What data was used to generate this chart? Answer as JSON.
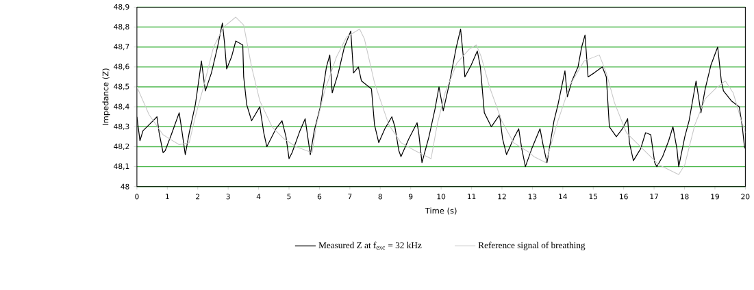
{
  "chart_data": {
    "type": "line",
    "xlabel": "Time (s)",
    "ylabel": "Impedance (Z)",
    "xlim": [
      0,
      20
    ],
    "ylim": [
      48,
      48.9
    ],
    "xticks": [
      0,
      1,
      2,
      3,
      4,
      5,
      6,
      7,
      8,
      9,
      10,
      11,
      12,
      13,
      14,
      15,
      16,
      17,
      18,
      19,
      20
    ],
    "yticks": [
      {
        "value": 48,
        "label": "48"
      },
      {
        "value": 48.1,
        "label": "48,1"
      },
      {
        "value": 48.2,
        "label": "48,2"
      },
      {
        "value": 48.3,
        "label": "48,3"
      },
      {
        "value": 48.4,
        "label": "48,4"
      },
      {
        "value": 48.5,
        "label": "48,5"
      },
      {
        "value": 48.6,
        "label": "48,6"
      },
      {
        "value": 48.7,
        "label": "48,7"
      },
      {
        "value": 48.8,
        "label": "48,8"
      },
      {
        "value": 48.9,
        "label": "48,9"
      }
    ],
    "grid": "y",
    "legend": "bottom",
    "series": [
      {
        "name": "Measured Z at f$_{exc}$ = 32  kHz",
        "color": "#000000",
        "x": [
          0,
          0.1,
          0.2,
          0.4,
          0.66,
          0.73,
          0.86,
          0.93,
          1.13,
          1.39,
          1.46,
          1.59,
          1.72,
          1.92,
          2.05,
          2.12,
          2.25,
          2.45,
          2.65,
          2.81,
          2.88,
          2.95,
          3.11,
          3.25,
          3.48,
          3.51,
          3.61,
          3.77,
          4.04,
          4.17,
          4.27,
          4.57,
          4.77,
          4.9,
          5.0,
          5.1,
          5.36,
          5.53,
          5.7,
          5.83,
          6.03,
          6.23,
          6.34,
          6.42,
          6.62,
          6.82,
          7.03,
          7.12,
          7.28,
          7.38,
          7.71,
          7.81,
          7.95,
          8.15,
          8.38,
          8.48,
          8.61,
          8.68,
          8.94,
          9.21,
          9.27,
          9.37,
          9.6,
          9.8,
          9.93,
          10.07,
          10.26,
          10.5,
          10.64,
          10.73,
          10.78,
          10.99,
          11.19,
          11.29,
          11.42,
          11.65,
          11.92,
          12.02,
          12.15,
          12.38,
          12.55,
          12.65,
          12.77,
          12.98,
          13.25,
          13.35,
          13.48,
          13.71,
          13.84,
          14.07,
          14.15,
          14.3,
          14.5,
          14.62,
          14.73,
          14.83,
          15.03,
          15.3,
          15.43,
          15.53,
          15.76,
          15.96,
          16.13,
          16.19,
          16.32,
          16.56,
          16.72,
          16.89,
          17.02,
          17.09,
          17.28,
          17.48,
          17.62,
          17.75,
          17.81,
          18.01,
          18.15,
          18.38,
          18.54,
          18.68,
          18.87,
          19.09,
          19.21,
          19.28,
          19.54,
          19.8,
          19.9,
          19.97,
          20
        ],
        "values": [
          48.35,
          48.23,
          48.28,
          48.31,
          48.35,
          48.27,
          48.17,
          48.18,
          48.26,
          48.37,
          48.3,
          48.16,
          48.27,
          48.41,
          48.55,
          48.63,
          48.48,
          48.57,
          48.7,
          48.82,
          48.72,
          48.59,
          48.65,
          48.73,
          48.71,
          48.55,
          48.41,
          48.33,
          48.4,
          48.27,
          48.2,
          48.29,
          48.33,
          48.25,
          48.14,
          48.17,
          48.28,
          48.34,
          48.16,
          48.28,
          48.4,
          48.6,
          48.66,
          48.47,
          48.57,
          48.7,
          48.78,
          48.57,
          48.6,
          48.53,
          48.49,
          48.31,
          48.22,
          48.29,
          48.35,
          48.3,
          48.18,
          48.15,
          48.24,
          48.32,
          48.26,
          48.12,
          48.25,
          48.39,
          48.5,
          48.38,
          48.51,
          48.7,
          48.79,
          48.65,
          48.55,
          48.61,
          48.68,
          48.6,
          48.37,
          48.3,
          48.36,
          48.24,
          48.16,
          48.24,
          48.29,
          48.19,
          48.1,
          48.19,
          48.29,
          48.21,
          48.12,
          48.33,
          48.41,
          48.58,
          48.45,
          48.53,
          48.6,
          48.7,
          48.76,
          48.55,
          48.57,
          48.6,
          48.55,
          48.3,
          48.25,
          48.29,
          48.34,
          48.22,
          48.13,
          48.19,
          48.27,
          48.26,
          48.12,
          48.1,
          48.15,
          48.23,
          48.3,
          48.19,
          48.1,
          48.25,
          48.33,
          48.53,
          48.37,
          48.49,
          48.61,
          48.7,
          48.53,
          48.48,
          48.43,
          48.4,
          48.3,
          48.2,
          48.19
        ]
      },
      {
        "name": "Reference signal of breathing",
        "color": "#c8c8c8",
        "x": [
          0,
          0.4,
          0.86,
          1.39,
          1.72,
          1.92,
          2.19,
          2.52,
          2.85,
          3.25,
          3.51,
          3.77,
          4.04,
          4.44,
          4.83,
          5.23,
          5.76,
          5.9,
          6.17,
          6.56,
          6.89,
          7.32,
          7.48,
          7.81,
          8.28,
          8.68,
          9.14,
          9.67,
          9.87,
          10.13,
          10.52,
          10.93,
          11.16,
          11.32,
          11.59,
          11.99,
          12.38,
          12.91,
          13.05,
          13.44,
          13.84,
          14.24,
          14.7,
          15.2,
          15.43,
          15.7,
          16.09,
          16.62,
          17.15,
          17.81,
          18.01,
          18.34,
          18.68,
          19.01,
          19.34,
          19.6,
          19.87,
          20
        ],
        "values": [
          48.5,
          48.36,
          48.26,
          48.21,
          48.22,
          48.35,
          48.5,
          48.7,
          48.8,
          48.85,
          48.81,
          48.6,
          48.43,
          48.3,
          48.24,
          48.2,
          48.17,
          48.31,
          48.48,
          48.65,
          48.75,
          48.79,
          48.74,
          48.52,
          48.31,
          48.22,
          48.18,
          48.14,
          48.31,
          48.47,
          48.62,
          48.69,
          48.71,
          48.65,
          48.5,
          48.33,
          48.22,
          48.17,
          48.15,
          48.12,
          48.33,
          48.51,
          48.63,
          48.66,
          48.57,
          48.42,
          48.27,
          48.19,
          48.11,
          48.06,
          48.11,
          48.31,
          48.44,
          48.49,
          48.53,
          48.47,
          48.33,
          48.27
        ]
      }
    ]
  }
}
